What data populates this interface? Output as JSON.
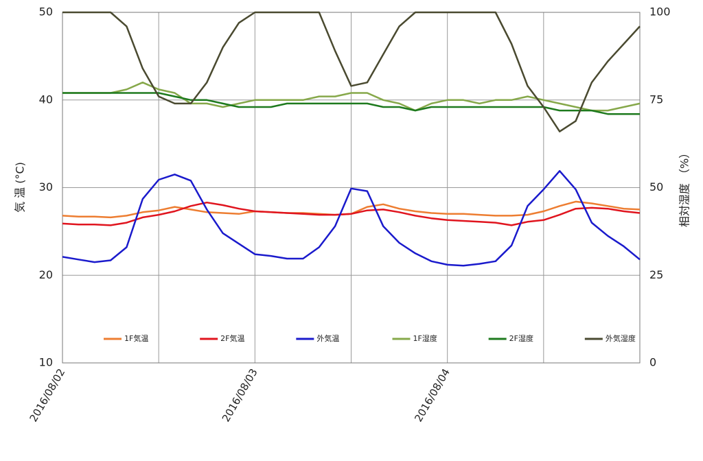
{
  "chart_data": {
    "type": "line",
    "categories": [
      "2016/08/02",
      null,
      null,
      null,
      null,
      null,
      null,
      null,
      null,
      null,
      null,
      null,
      "2016/08/03",
      null,
      null,
      null,
      null,
      null,
      null,
      null,
      null,
      null,
      null,
      null,
      "2016/08/04",
      null,
      null,
      null,
      null,
      null,
      null,
      null,
      null,
      null,
      null,
      null,
      null
    ],
    "ylabel": "気 温 (°C)",
    "y2label": "相対湿度 （%）",
    "ylim": [
      10,
      50
    ],
    "yticks": [
      10,
      20,
      30,
      40,
      50
    ],
    "y2lim": [
      0,
      100
    ],
    "y2ticks": [
      0,
      25,
      50,
      75,
      100
    ],
    "grid": true,
    "legend": "bottom",
    "series": [
      {
        "name": "1F気温",
        "color": "#ed7d31",
        "values": [
          26.8,
          26.7,
          26.7,
          26.6,
          26.8,
          27.2,
          27.4,
          27.8,
          27.5,
          27.2,
          27.1,
          27.0,
          27.3,
          27.2,
          27.1,
          27.1,
          27.0,
          26.9,
          27.0,
          27.8,
          28.1,
          27.6,
          27.3,
          27.1,
          27.0,
          27.0,
          26.9,
          26.8,
          26.8,
          26.9,
          27.3,
          27.9,
          28.4,
          28.2,
          27.9,
          27.6,
          27.5
        ]
      },
      {
        "name": "2F気温",
        "color": "#e0141e",
        "values": [
          25.9,
          25.8,
          25.8,
          25.7,
          26.0,
          26.6,
          26.9,
          27.3,
          27.9,
          28.3,
          28.0,
          27.6,
          27.3,
          27.2,
          27.1,
          27.0,
          26.9,
          26.9,
          27.0,
          27.4,
          27.5,
          27.2,
          26.8,
          26.5,
          26.3,
          26.2,
          26.1,
          26.0,
          25.7,
          26.1,
          26.3,
          26.9,
          27.6,
          27.7,
          27.6,
          27.3,
          27.1
        ]
      },
      {
        "name": "外気温",
        "color": "#1a1acc",
        "values": [
          22.1,
          21.8,
          21.5,
          21.7,
          23.2,
          28.7,
          30.9,
          31.5,
          30.8,
          27.5,
          24.8,
          23.6,
          22.4,
          22.2,
          21.9,
          21.9,
          23.2,
          25.6,
          29.9,
          29.6,
          25.6,
          23.7,
          22.5,
          21.6,
          21.2,
          21.1,
          21.3,
          21.6,
          23.4,
          27.9,
          29.8,
          31.9,
          29.8,
          26.0,
          24.5,
          23.3,
          21.8
        ]
      },
      {
        "name": "1F湿度",
        "color": "#86a84a",
        "axis": "y2",
        "values": [
          77,
          77,
          77,
          77,
          78,
          80,
          78,
          77,
          74,
          74,
          73,
          74,
          75,
          75,
          75,
          75,
          76,
          76,
          77,
          77,
          75,
          74,
          72,
          74,
          75,
          75,
          74,
          75,
          75,
          76,
          75,
          74,
          73,
          72,
          72,
          73,
          74
        ]
      },
      {
        "name": "2F湿度",
        "color": "#1e7a1e",
        "axis": "y2",
        "values": [
          77,
          77,
          77,
          77,
          77,
          77,
          77,
          76,
          75,
          75,
          74,
          73,
          73,
          73,
          74,
          74,
          74,
          74,
          74,
          74,
          73,
          73,
          72,
          73,
          73,
          73,
          73,
          73,
          73,
          73,
          73,
          72,
          72,
          72,
          71,
          71,
          71
        ]
      },
      {
        "name": "外気湿度",
        "color": "#4a4a30",
        "axis": "y2",
        "values": [
          100,
          100,
          100,
          100,
          96,
          84,
          76,
          74,
          74,
          80,
          90,
          97,
          100,
          100,
          100,
          100,
          100,
          89,
          79,
          80,
          88,
          96,
          100,
          100,
          100,
          100,
          100,
          100,
          91,
          79,
          73,
          66,
          69,
          80,
          86,
          91,
          96
        ]
      }
    ]
  }
}
